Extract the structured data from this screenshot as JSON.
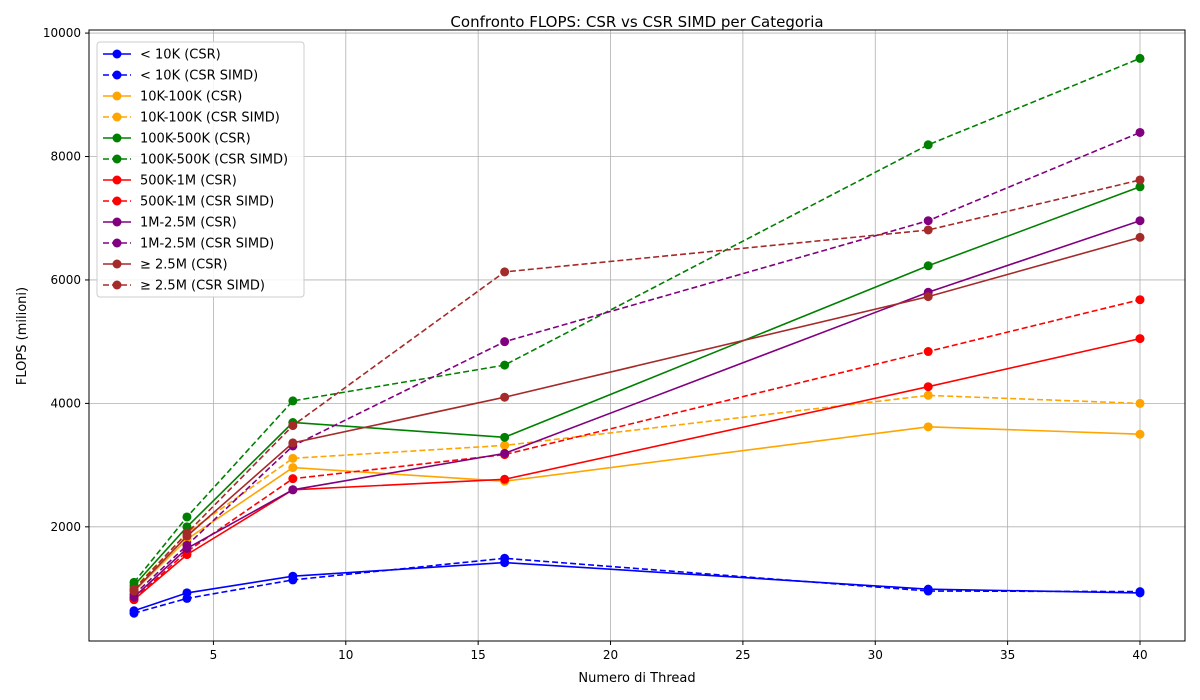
{
  "chart_data": {
    "type": "line",
    "title": "Confronto FLOPS: CSR vs CSR SIMD per Categoria",
    "xlabel": "Numero di Thread",
    "ylabel": "FLOPS (milioni)",
    "x": [
      2,
      4,
      8,
      16,
      32,
      40
    ],
    "xlim": [
      0.3,
      41.7
    ],
    "ylim": [
      150,
      10050
    ],
    "xticks": [
      5,
      10,
      15,
      20,
      25,
      30,
      35,
      40
    ],
    "yticks": [
      2000,
      4000,
      6000,
      8000,
      10000
    ],
    "grid": true,
    "legend_position": "upper-left",
    "series": [
      {
        "name": "< 10K (CSR)",
        "color": "#0000ff",
        "dashed": false,
        "values": [
          640,
          930,
          1200,
          1420,
          990,
          930
        ]
      },
      {
        "name": "< 10K (CSR SIMD)",
        "color": "#0000ff",
        "dashed": true,
        "values": [
          600,
          840,
          1140,
          1490,
          960,
          950
        ]
      },
      {
        "name": "10K-100K (CSR)",
        "color": "#ffa500",
        "dashed": false,
        "values": [
          950,
          1800,
          2960,
          2740,
          3620,
          3500
        ]
      },
      {
        "name": "10K-100K (CSR SIMD)",
        "color": "#ffa500",
        "dashed": true,
        "values": [
          1000,
          1900,
          3110,
          3320,
          4130,
          4000
        ]
      },
      {
        "name": "100K-500K (CSR)",
        "color": "#008000",
        "dashed": false,
        "values": [
          1050,
          2000,
          3690,
          3450,
          6230,
          7510
        ]
      },
      {
        "name": "100K-500K (CSR SIMD)",
        "color": "#008000",
        "dashed": true,
        "values": [
          1100,
          2160,
          4040,
          4620,
          8190,
          9590
        ]
      },
      {
        "name": "500K-1M (CSR)",
        "color": "#ff0000",
        "dashed": false,
        "values": [
          820,
          1550,
          2600,
          2770,
          4270,
          5050
        ]
      },
      {
        "name": "500K-1M (CSR SIMD)",
        "color": "#ff0000",
        "dashed": true,
        "values": [
          830,
          1600,
          2780,
          3170,
          4840,
          5680
        ]
      },
      {
        "name": "1M-2.5M (CSR)",
        "color": "#800080",
        "dashed": false,
        "values": [
          860,
          1650,
          2600,
          3190,
          5800,
          6960
        ]
      },
      {
        "name": "1M-2.5M (CSR SIMD)",
        "color": "#800080",
        "dashed": true,
        "values": [
          900,
          1700,
          3310,
          5000,
          6960,
          8390
        ]
      },
      {
        "name": "≥ 2.5M (CSR)",
        "color": "#a52a2a",
        "dashed": false,
        "values": [
          960,
          1850,
          3360,
          4100,
          5730,
          6690
        ]
      },
      {
        "name": "≥ 2.5M (CSR SIMD)",
        "color": "#a52a2a",
        "dashed": true,
        "values": [
          990,
          1900,
          3640,
          6130,
          6810,
          7620
        ]
      }
    ]
  }
}
